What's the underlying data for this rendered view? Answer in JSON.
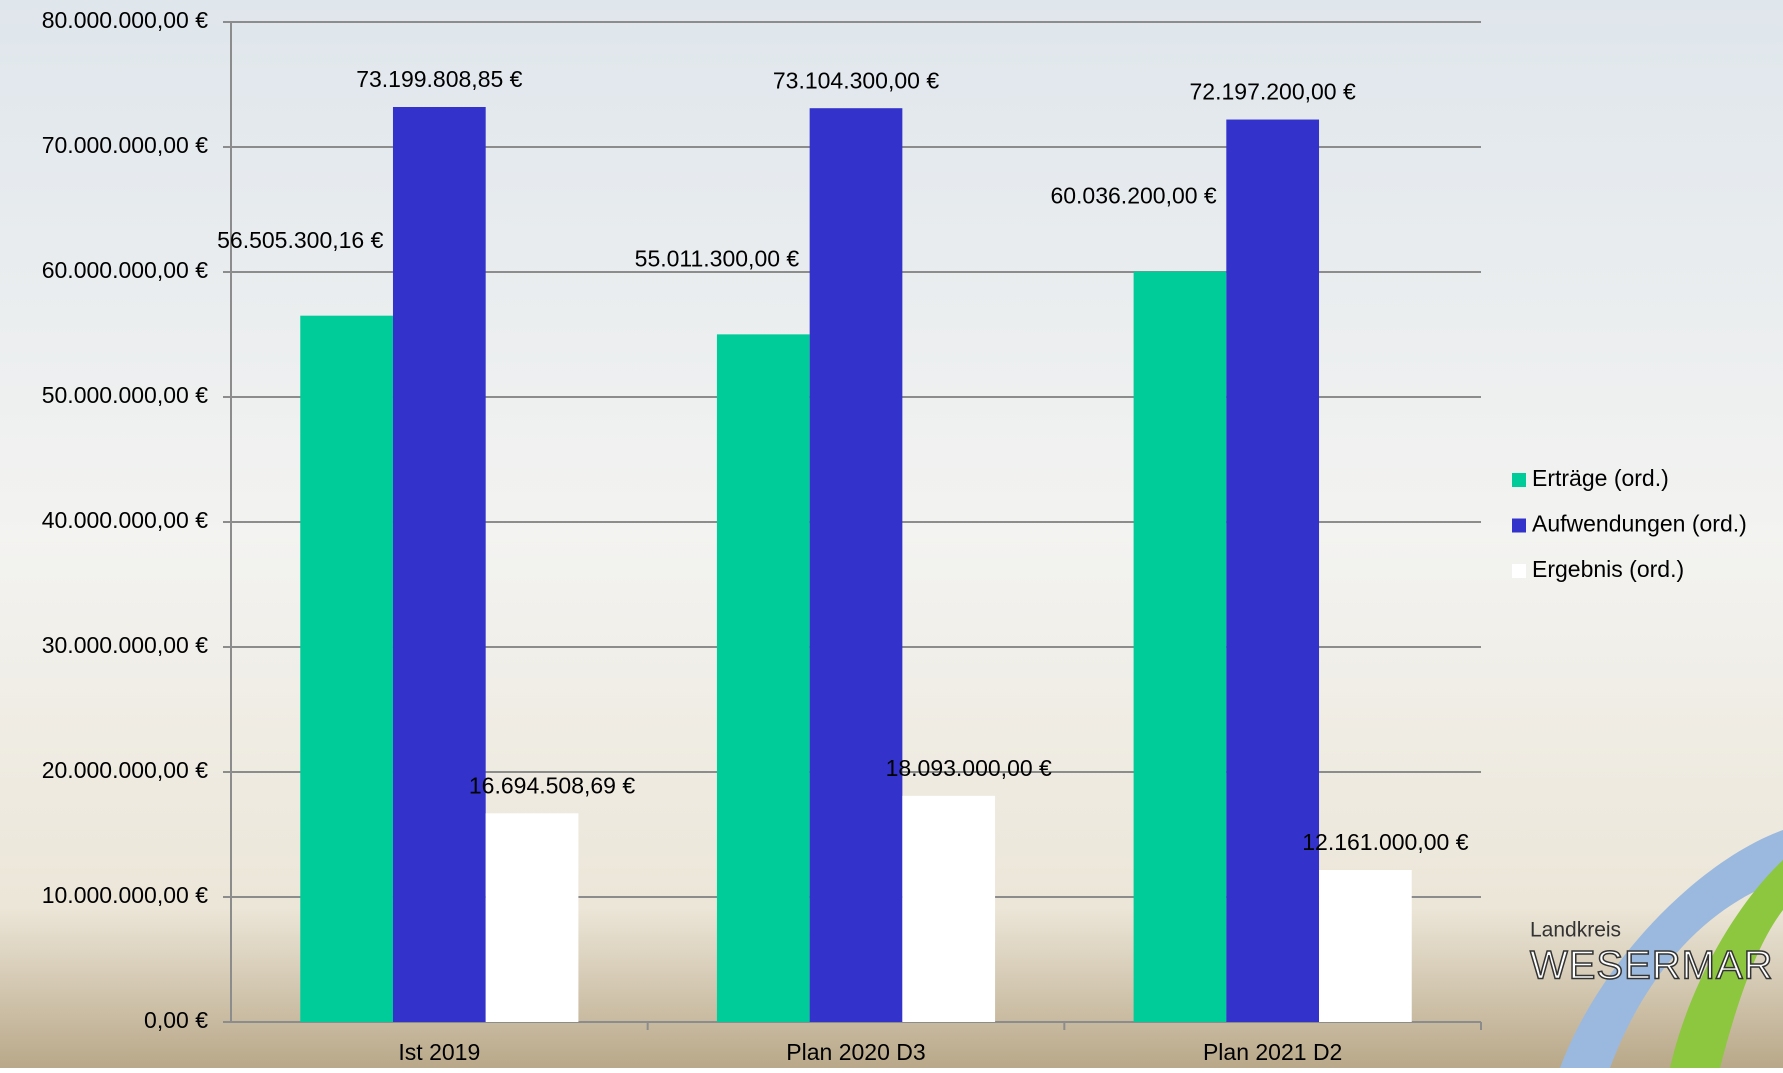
{
  "chart_data": {
    "type": "bar",
    "categories": [
      "Ist 2019",
      "Plan 2020 D3",
      "Plan 2021 D2"
    ],
    "series": [
      {
        "name": "Erträge (ord.)",
        "color": "#00cc99",
        "values": [
          56505300.16,
          55011300.0,
          60036200.0
        ],
        "value_labels": [
          "56.505.300,16 €",
          "55.011.300,00 €",
          "60.036.200,00 €"
        ]
      },
      {
        "name": "Aufwendungen (ord.)",
        "color": "#3333cc",
        "values": [
          73199808.85,
          73104300.0,
          72197200.0
        ],
        "value_labels": [
          "73.199.808,85 €",
          "73.104.300,00 €",
          "72.197.200,00 €"
        ]
      },
      {
        "name": "Ergebnis (ord.)",
        "color": "#ffffff",
        "values": [
          16694508.69,
          18093000.0,
          12161000.0
        ],
        "value_labels": [
          "16.694.508,69 €",
          "18.093.000,00 €",
          "12.161.000,00 €"
        ]
      }
    ],
    "ylim": [
      0,
      80000000
    ],
    "yticks": [
      {
        "value": 0,
        "label": "0,00 €"
      },
      {
        "value": 10000000,
        "label": "10.000.000,00 €"
      },
      {
        "value": 20000000,
        "label": "20.000.000,00 €"
      },
      {
        "value": 30000000,
        "label": "30.000.000,00 €"
      },
      {
        "value": 40000000,
        "label": "40.000.000,00 €"
      },
      {
        "value": 50000000,
        "label": "50.000.000,00 €"
      },
      {
        "value": 60000000,
        "label": "60.000.000,00 €"
      },
      {
        "value": 70000000,
        "label": "70.000.000,00 €"
      },
      {
        "value": 80000000,
        "label": "80.000.000,00 €"
      }
    ],
    "grid": true,
    "legend": "right"
  },
  "logo": {
    "line1": "Landkreis",
    "line2": "WESERMAR"
  }
}
